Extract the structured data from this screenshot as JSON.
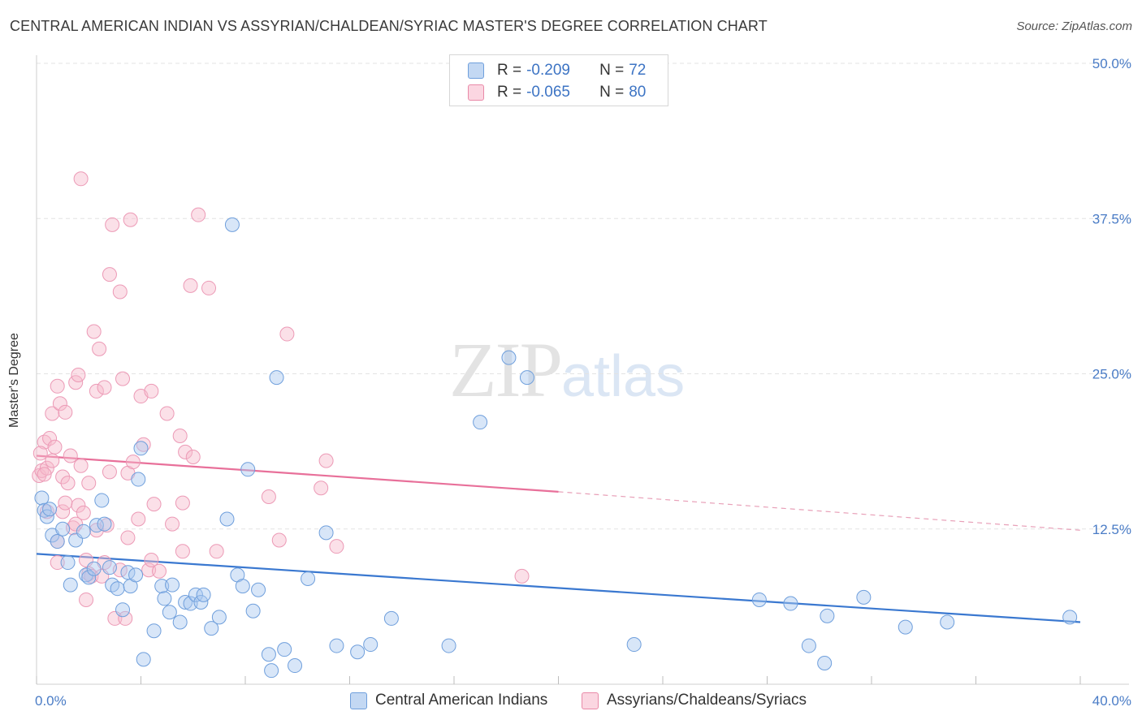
{
  "header": {
    "title": "CENTRAL AMERICAN INDIAN VS ASSYRIAN/CHALDEAN/SYRIAC MASTER'S DEGREE CORRELATION CHART",
    "source": "Source: ZipAtlas.com"
  },
  "watermark": {
    "zip": "ZIP",
    "atlas": "atlas"
  },
  "legend": {
    "rows": [
      {
        "r_label": "R = ",
        "r_value": "-0.209",
        "n_label": "N = ",
        "n_value": "72",
        "color": "#a9c8ef",
        "border": "#6f9fdc"
      },
      {
        "r_label": "R = ",
        "r_value": "-0.065",
        "n_label": "N = ",
        "n_value": "80",
        "color": "#f6c0d0",
        "border": "#e98aa8"
      }
    ]
  },
  "bottom_legend": {
    "series1": "Central American Indians",
    "series2": "Assyrians/Chaldeans/Syriacs"
  },
  "chart_data": {
    "type": "scatter",
    "title": "CENTRAL AMERICAN INDIAN VS ASSYRIAN/CHALDEAN/SYRIAC MASTER'S DEGREE CORRELATION CHART",
    "ylabel": "Master's Degree",
    "xlim": [
      0,
      40
    ],
    "ylim": [
      0,
      50
    ],
    "x_ticks": [
      "0.0%",
      "40.0%"
    ],
    "y_ticks": [
      "12.5%",
      "25.0%",
      "37.5%",
      "50.0%"
    ],
    "y_tick_values": [
      12.5,
      25.0,
      37.5,
      50.0
    ],
    "grid": true,
    "legend_position": "top-center",
    "colors": {
      "blue": "#3a78d0",
      "pink": "#e8709a"
    },
    "series": [
      {
        "name": "Central American Indians",
        "color": "#3a78d0",
        "trend": {
          "x": [
            0,
            40
          ],
          "y": [
            10.5,
            5.0
          ],
          "style": "solid"
        },
        "points": [
          [
            0.2,
            15.0
          ],
          [
            0.3,
            14.0
          ],
          [
            0.4,
            13.5
          ],
          [
            0.6,
            12.0
          ],
          [
            0.8,
            11.5
          ],
          [
            1.0,
            12.5
          ],
          [
            1.2,
            9.8
          ],
          [
            1.3,
            8.0
          ],
          [
            1.5,
            11.6
          ],
          [
            1.8,
            12.3
          ],
          [
            1.9,
            8.8
          ],
          [
            2.0,
            8.6
          ],
          [
            2.2,
            9.3
          ],
          [
            2.3,
            12.8
          ],
          [
            2.5,
            14.8
          ],
          [
            2.6,
            12.9
          ],
          [
            2.8,
            9.4
          ],
          [
            2.9,
            8.0
          ],
          [
            3.1,
            7.7
          ],
          [
            3.3,
            6.0
          ],
          [
            3.5,
            9.0
          ],
          [
            3.6,
            7.9
          ],
          [
            3.8,
            8.8
          ],
          [
            3.9,
            16.5
          ],
          [
            4.0,
            19.0
          ],
          [
            4.1,
            2.0
          ],
          [
            4.5,
            4.3
          ],
          [
            4.8,
            7.9
          ],
          [
            4.9,
            6.9
          ],
          [
            5.1,
            5.8
          ],
          [
            5.2,
            8.0
          ],
          [
            5.5,
            5.0
          ],
          [
            5.7,
            6.6
          ],
          [
            5.9,
            6.5
          ],
          [
            6.1,
            7.2
          ],
          [
            6.3,
            6.6
          ],
          [
            6.4,
            7.2
          ],
          [
            6.7,
            4.5
          ],
          [
            7.0,
            5.4
          ],
          [
            7.3,
            13.3
          ],
          [
            7.5,
            37.0
          ],
          [
            7.7,
            8.8
          ],
          [
            7.9,
            7.9
          ],
          [
            8.1,
            17.3
          ],
          [
            8.3,
            5.9
          ],
          [
            8.5,
            7.6
          ],
          [
            8.9,
            2.4
          ],
          [
            9.0,
            1.1
          ],
          [
            9.2,
            24.7
          ],
          [
            9.5,
            2.8
          ],
          [
            9.9,
            1.5
          ],
          [
            10.4,
            8.5
          ],
          [
            11.1,
            12.2
          ],
          [
            11.5,
            3.1
          ],
          [
            12.3,
            2.6
          ],
          [
            12.8,
            3.2
          ],
          [
            13.6,
            5.3
          ],
          [
            15.8,
            3.1
          ],
          [
            17.0,
            21.1
          ],
          [
            18.1,
            26.3
          ],
          [
            18.8,
            24.7
          ],
          [
            22.9,
            3.2
          ],
          [
            27.7,
            6.8
          ],
          [
            28.9,
            6.5
          ],
          [
            29.6,
            3.1
          ],
          [
            30.2,
            1.7
          ],
          [
            30.3,
            5.5
          ],
          [
            31.7,
            7.0
          ],
          [
            33.3,
            4.6
          ],
          [
            34.9,
            5.0
          ],
          [
            39.6,
            5.4
          ],
          [
            0.5,
            14.1
          ]
        ]
      },
      {
        "name": "Assyrians/Chaldeans/Syriacs",
        "color": "#e8709a",
        "trend": {
          "x": [
            0,
            20
          ],
          "y": [
            18.4,
            15.5
          ],
          "style": "solid",
          "extension": {
            "x": [
              20,
              40
            ],
            "y": [
              15.5,
              12.4
            ],
            "style": "dashed"
          }
        },
        "points": [
          [
            0.1,
            16.8
          ],
          [
            0.2,
            17.2
          ],
          [
            0.3,
            19.5
          ],
          [
            0.4,
            17.4
          ],
          [
            0.5,
            19.8
          ],
          [
            0.6,
            18.0
          ],
          [
            0.6,
            21.8
          ],
          [
            0.7,
            19.1
          ],
          [
            0.8,
            11.5
          ],
          [
            0.8,
            9.8
          ],
          [
            0.8,
            24.0
          ],
          [
            0.9,
            22.6
          ],
          [
            1.0,
            13.9
          ],
          [
            1.0,
            16.7
          ],
          [
            1.1,
            21.9
          ],
          [
            1.2,
            16.2
          ],
          [
            1.3,
            18.4
          ],
          [
            1.4,
            12.6
          ],
          [
            1.5,
            12.9
          ],
          [
            1.5,
            24.3
          ],
          [
            1.6,
            14.4
          ],
          [
            1.6,
            24.9
          ],
          [
            1.7,
            17.6
          ],
          [
            1.7,
            40.7
          ],
          [
            1.8,
            13.8
          ],
          [
            1.9,
            6.8
          ],
          [
            1.9,
            10.0
          ],
          [
            2.0,
            16.2
          ],
          [
            2.0,
            8.9
          ],
          [
            2.1,
            8.7
          ],
          [
            2.2,
            28.4
          ],
          [
            2.3,
            23.6
          ],
          [
            2.3,
            12.4
          ],
          [
            2.4,
            27.0
          ],
          [
            2.5,
            8.7
          ],
          [
            2.6,
            9.8
          ],
          [
            2.6,
            23.9
          ],
          [
            2.7,
            12.8
          ],
          [
            2.8,
            33.0
          ],
          [
            2.8,
            17.1
          ],
          [
            2.9,
            37.0
          ],
          [
            3.0,
            5.3
          ],
          [
            3.2,
            31.6
          ],
          [
            3.2,
            9.2
          ],
          [
            3.3,
            24.6
          ],
          [
            3.4,
            5.3
          ],
          [
            3.5,
            11.8
          ],
          [
            3.5,
            17.0
          ],
          [
            3.6,
            37.4
          ],
          [
            3.7,
            17.9
          ],
          [
            3.9,
            13.3
          ],
          [
            4.0,
            23.2
          ],
          [
            4.1,
            19.3
          ],
          [
            4.3,
            9.2
          ],
          [
            4.4,
            10.0
          ],
          [
            4.4,
            23.6
          ],
          [
            4.5,
            14.5
          ],
          [
            4.7,
            9.1
          ],
          [
            5.0,
            21.8
          ],
          [
            5.2,
            12.9
          ],
          [
            5.5,
            20.0
          ],
          [
            5.6,
            14.6
          ],
          [
            5.6,
            10.7
          ],
          [
            5.7,
            18.7
          ],
          [
            5.9,
            32.1
          ],
          [
            6.0,
            18.3
          ],
          [
            6.2,
            37.8
          ],
          [
            6.6,
            31.9
          ],
          [
            6.9,
            10.7
          ],
          [
            8.9,
            15.1
          ],
          [
            9.3,
            11.6
          ],
          [
            9.6,
            28.2
          ],
          [
            10.9,
            15.8
          ],
          [
            11.1,
            18.0
          ],
          [
            11.5,
            11.1
          ],
          [
            18.6,
            8.7
          ],
          [
            0.15,
            18.6
          ],
          [
            0.3,
            16.9
          ],
          [
            1.1,
            14.6
          ],
          [
            0.4,
            13.9
          ]
        ]
      }
    ]
  }
}
